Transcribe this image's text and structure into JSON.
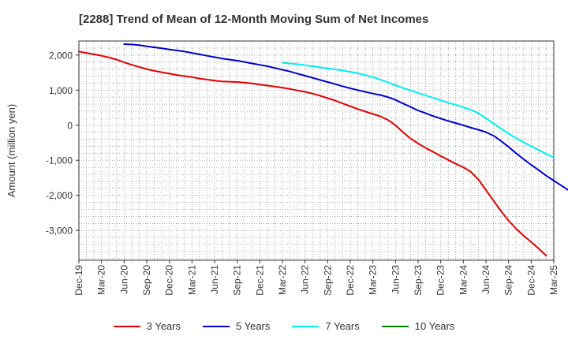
{
  "chart_data": {
    "type": "line",
    "title": "[2288]  Trend of Mean of 12-Month Moving Sum of Net Incomes",
    "ylabel": "Amount (million yen)",
    "xlabel": "",
    "ylim": [
      -3850,
      2400
    ],
    "yticks": [
      {
        "value": 2000,
        "label": "2,000"
      },
      {
        "value": 1000,
        "label": "1,000"
      },
      {
        "value": 0,
        "label": "0"
      },
      {
        "value": -1000,
        "label": "-1,000"
      },
      {
        "value": -2000,
        "label": "-2,000"
      },
      {
        "value": -3000,
        "label": "-3,000"
      }
    ],
    "x_tick_labels": [
      "Dec-19",
      "Mar-20",
      "Jun-20",
      "Sep-20",
      "Dec-20",
      "Mar-21",
      "Jun-21",
      "Sep-21",
      "Dec-21",
      "Mar-22",
      "Jun-22",
      "Sep-22",
      "Dec-22",
      "Mar-23",
      "Jun-23",
      "Sep-23",
      "Dec-23",
      "Mar-24",
      "Jun-24",
      "Sep-24",
      "Dec-24",
      "Mar-25"
    ],
    "grid": true,
    "legend_position": "bottom",
    "series": [
      {
        "name": "3 Years",
        "color": "#dd0000",
        "start": 0,
        "values": [
          2100,
          2060,
          2020,
          1980,
          1930,
          1870,
          1790,
          1720,
          1660,
          1600,
          1550,
          1510,
          1470,
          1430,
          1400,
          1370,
          1330,
          1300,
          1270,
          1250,
          1240,
          1230,
          1210,
          1190,
          1160,
          1130,
          1100,
          1070,
          1030,
          990,
          950,
          900,
          840,
          770,
          700,
          620,
          540,
          460,
          390,
          320,
          250,
          150,
          0,
          -200,
          -380,
          -520,
          -650,
          -760,
          -880,
          -990,
          -1100,
          -1200,
          -1330,
          -1550,
          -1850,
          -2150,
          -2450,
          -2720,
          -2950,
          -3150,
          -3330,
          -3520,
          -3720
        ]
      },
      {
        "name": "5 Years",
        "color": "#0000cc",
        "start": 6,
        "values": [
          2310,
          2300,
          2280,
          2250,
          2220,
          2190,
          2160,
          2130,
          2100,
          2060,
          2020,
          1980,
          1940,
          1900,
          1870,
          1840,
          1800,
          1760,
          1720,
          1680,
          1630,
          1580,
          1530,
          1470,
          1410,
          1350,
          1290,
          1230,
          1170,
          1110,
          1050,
          1000,
          950,
          900,
          860,
          800,
          720,
          620,
          520,
          420,
          340,
          260,
          190,
          120,
          60,
          0,
          -70,
          -130,
          -200,
          -300,
          -450,
          -620,
          -800,
          -970,
          -1130,
          -1280,
          -1440,
          -1580,
          -1720,
          -1860,
          -1980
        ]
      },
      {
        "name": "7 Years",
        "color": "#00eeee",
        "start": 27,
        "values": [
          1780,
          1760,
          1740,
          1710,
          1680,
          1650,
          1620,
          1590,
          1560,
          1520,
          1480,
          1430,
          1370,
          1300,
          1220,
          1140,
          1060,
          990,
          920,
          850,
          780,
          710,
          640,
          580,
          510,
          440,
          340,
          200,
          50,
          -100,
          -240,
          -370,
          -490,
          -600,
          -710,
          -820,
          -920
        ]
      },
      {
        "name": "10 Years",
        "color": "#008800",
        "start": 0,
        "values": []
      }
    ]
  }
}
